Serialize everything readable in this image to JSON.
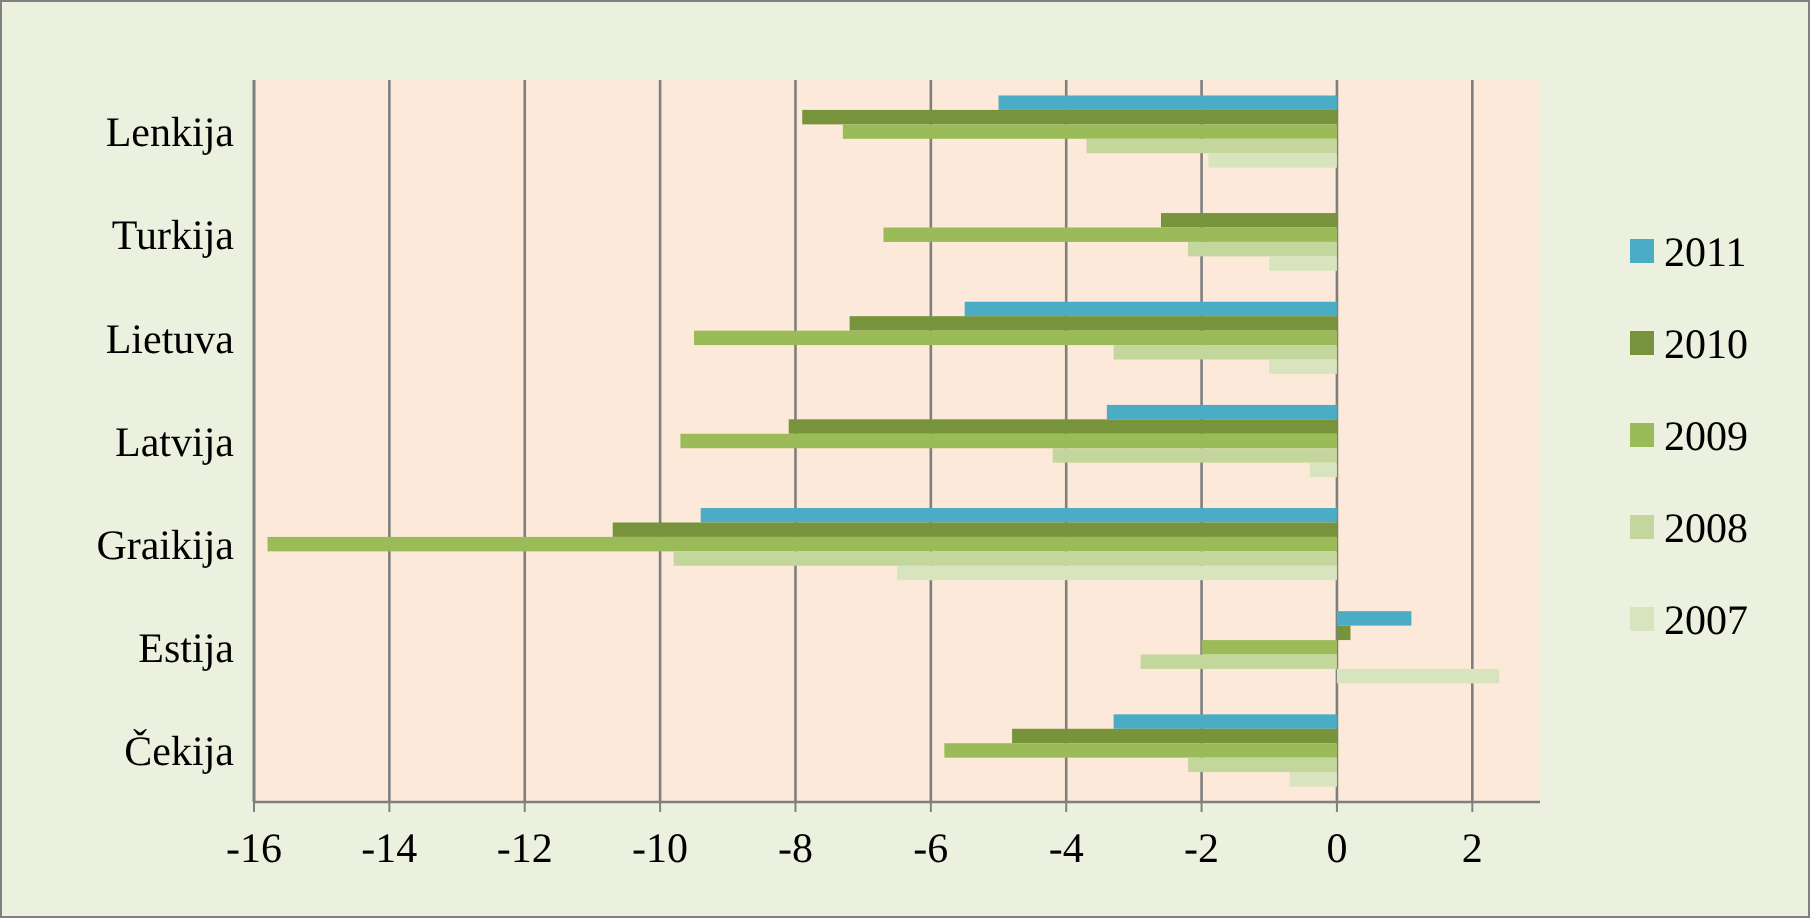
{
  "chart_data": {
    "type": "bar",
    "orientation": "horizontal",
    "categories": [
      "Lenkija",
      "Turkija",
      "Lietuva",
      "Latvija",
      "Graikija",
      "Estija",
      "Čekija"
    ],
    "series": [
      {
        "name": "2011",
        "color": "#4bacc6",
        "values": [
          -5.0,
          null,
          -5.5,
          -3.4,
          -9.4,
          1.1,
          -3.3
        ]
      },
      {
        "name": "2010",
        "color": "#77933c",
        "values": [
          -7.9,
          -2.6,
          -7.2,
          -8.1,
          -10.7,
          0.2,
          -4.8
        ]
      },
      {
        "name": "2009",
        "color": "#9bbb59",
        "values": [
          -7.3,
          -6.7,
          -9.5,
          -9.7,
          -15.8,
          -2.0,
          -5.8
        ]
      },
      {
        "name": "2008",
        "color": "#c3d69b",
        "values": [
          -3.7,
          -2.2,
          -3.3,
          -4.2,
          -9.8,
          -2.9,
          -2.2
        ]
      },
      {
        "name": "2007",
        "color": "#d7e4bd",
        "values": [
          -1.9,
          -1.0,
          -1.0,
          -0.4,
          -6.5,
          2.4,
          -0.7
        ]
      }
    ],
    "xlim": [
      -16,
      3
    ],
    "xticks": [
      -16,
      -14,
      -12,
      -10,
      -8,
      -6,
      -4,
      -2,
      0,
      2
    ],
    "grid": "x",
    "legend": "right"
  }
}
